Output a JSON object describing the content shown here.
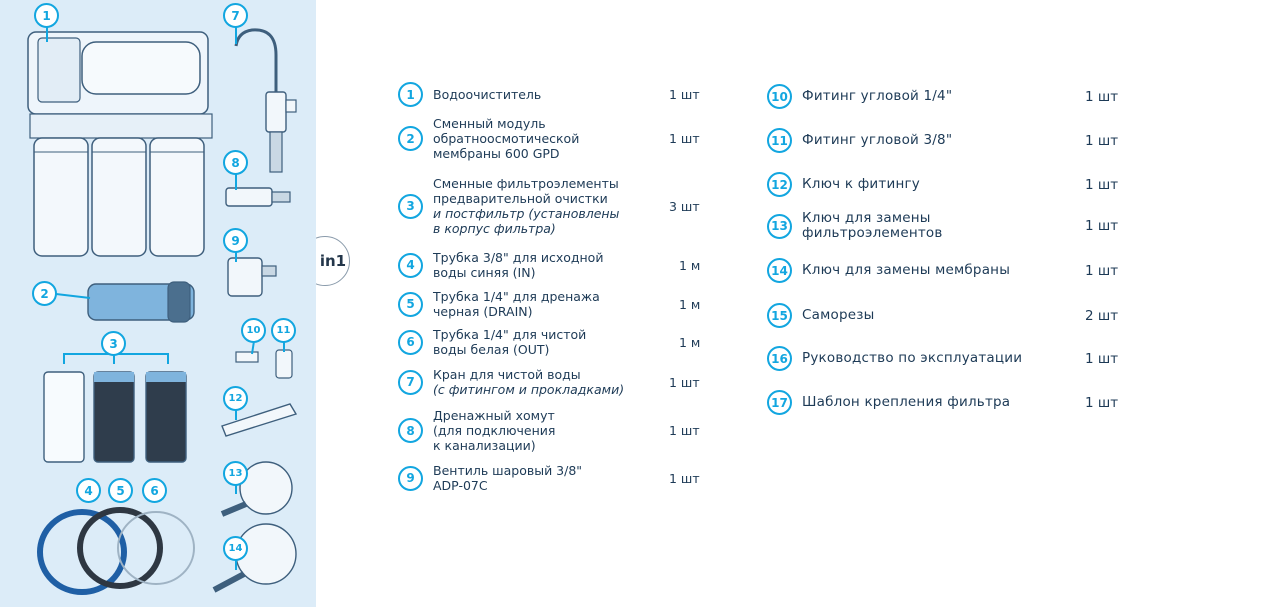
{
  "left_column": [
    {
      "num": "1",
      "lines": [
        "Водоочиститель"
      ],
      "qty": "1 шт"
    },
    {
      "num": "2",
      "lines": [
        "Сменный модуль",
        "обратноосмотической",
        "мембраны 600 GPD"
      ],
      "qty": "1 шт"
    },
    {
      "num": "3",
      "lines": [
        "Сменные фильтроэлементы",
        "предварительной очистки",
        "и постфильтр (установлены",
        "в корпус фильтра)"
      ],
      "qty": "3 шт"
    },
    {
      "num": "4",
      "lines": [
        "Трубка 3/8\" для исходной",
        "воды синяя (IN)"
      ],
      "qty": "1 м"
    },
    {
      "num": "5",
      "lines": [
        "Трубка 1/4\" для дренажа",
        "черная (DRAIN)"
      ],
      "qty": "1 м"
    },
    {
      "num": "6",
      "lines": [
        "Трубка 1/4\" для чистой",
        "воды белая (OUT)"
      ],
      "qty": "1 м"
    },
    {
      "num": "7",
      "lines": [
        "Кран для чистой воды",
        "(с фитингом и прокладками)"
      ],
      "qty": "1 шт"
    },
    {
      "num": "8",
      "lines": [
        "Дренажный хомут",
        "(для подключения",
        "к канализации)"
      ],
      "qty": "1 шт"
    },
    {
      "num": "9",
      "lines": [
        "Вентиль шаровый 3/8\"",
        "ADP-07C"
      ],
      "qty": "1 шт"
    }
  ],
  "right_column": [
    {
      "num": "10",
      "lines": [
        "Фитинг угловой 1/4\""
      ],
      "qty": "1 шт"
    },
    {
      "num": "11",
      "lines": [
        "Фитинг угловой 3/8\""
      ],
      "qty": "1 шт"
    },
    {
      "num": "12",
      "lines": [
        "Ключ к фитингу"
      ],
      "qty": "1 шт"
    },
    {
      "num": "13",
      "lines": [
        "Ключ для замены",
        "фильтроэлементов"
      ],
      "qty": "1 шт"
    },
    {
      "num": "14",
      "lines": [
        "Ключ для замены мембраны"
      ],
      "qty": "1 шт"
    },
    {
      "num": "15",
      "lines": [
        "Саморезы"
      ],
      "qty": "2 шт"
    },
    {
      "num": "16",
      "lines": [
        "Руководство по эксплуатации"
      ],
      "qty": "1 шт"
    },
    {
      "num": "17",
      "lines": [
        "Шаблон крепления фильтра"
      ],
      "qty": "1 шт"
    }
  ],
  "badge": {
    "label": "in1"
  },
  "illustration_callouts": [
    "1",
    "7",
    "8",
    "9",
    "2",
    "10",
    "11",
    "3",
    "12",
    "13",
    "4",
    "5",
    "6",
    "14"
  ],
  "colors": {
    "accent": "#12a6e0",
    "panel_bg": "#dcecf8",
    "text": "#1d3a56"
  }
}
